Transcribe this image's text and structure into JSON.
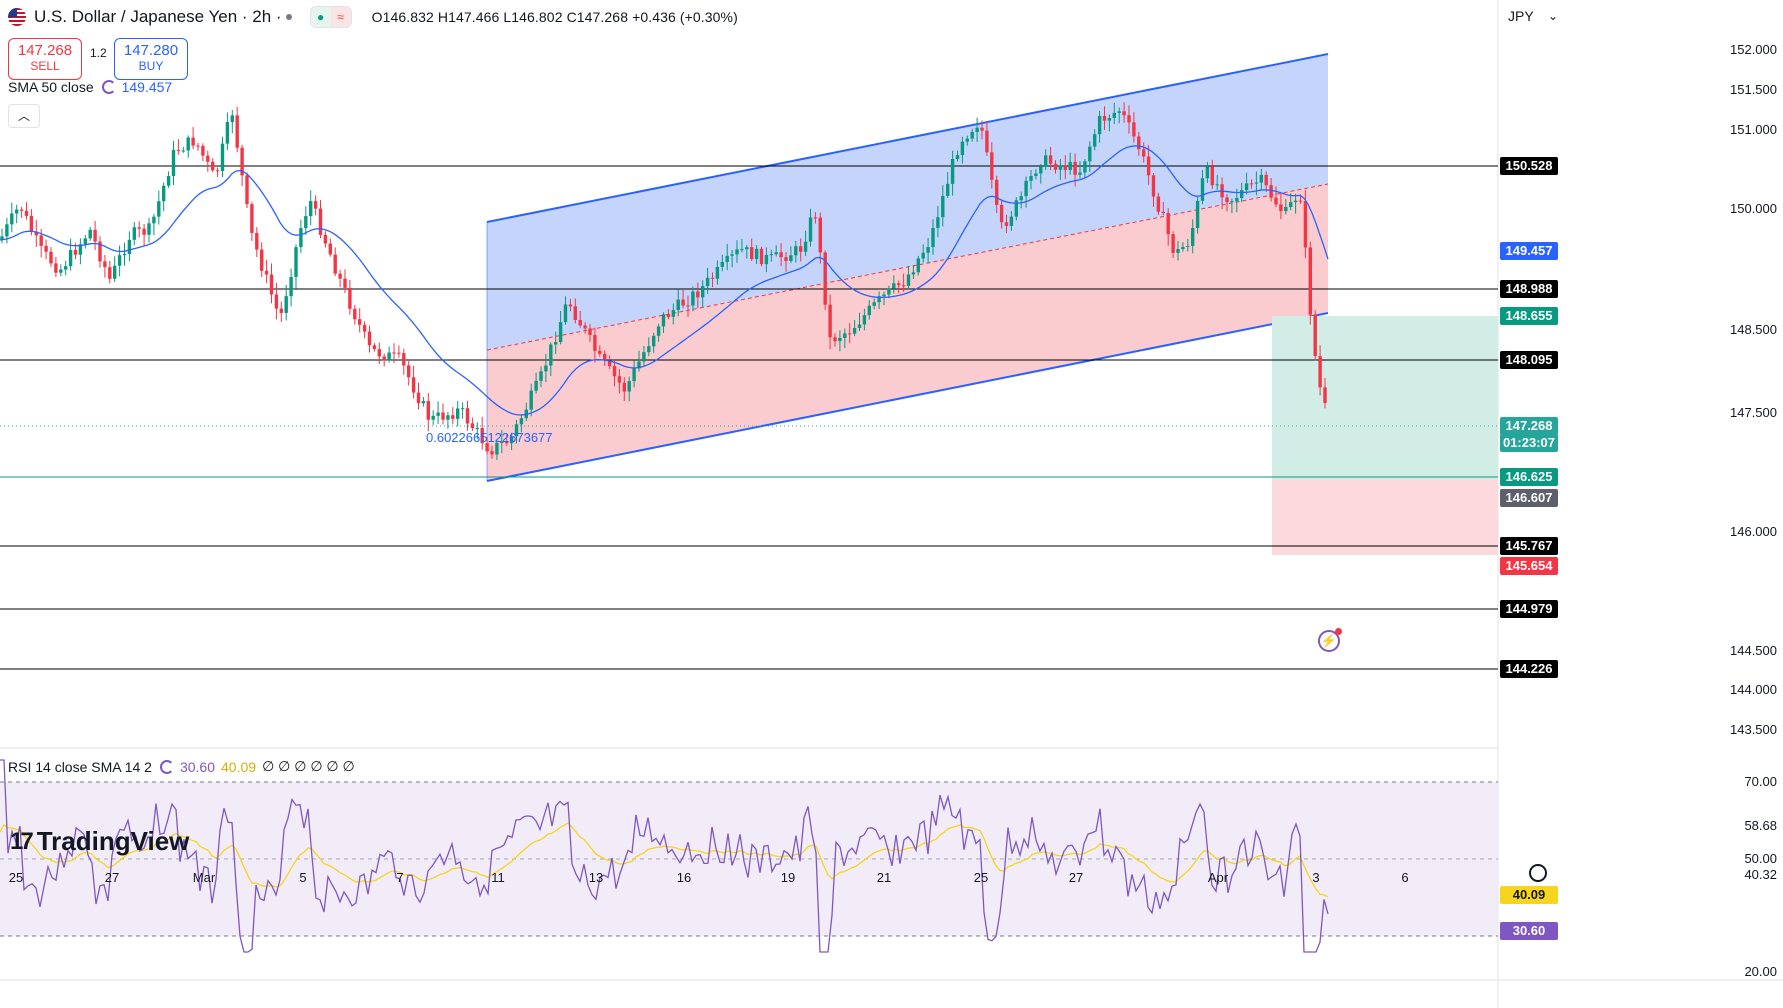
{
  "header": {
    "title": "U.S. Dollar / Japanese Yen · 2h ·",
    "ohlc": "O146.832 H147.466 L146.802 C147.268 +0.436 (+0.30%)"
  },
  "trade": {
    "sell_price": "147.268",
    "sell_label": "SELL",
    "spread": "1.2",
    "buy_price": "147.280",
    "buy_label": "BUY"
  },
  "indicators": {
    "sma_label": "SMA 50 close",
    "sma_value": "149.457",
    "rsi_label": "RSI 14 close SMA 14 2",
    "rsi_value": "30.60",
    "rsi_sma_value": "40.09",
    "rsi_extra": "∅ ∅ ∅ ∅ ∅ ∅"
  },
  "currency": "JPY",
  "channel_label": "0.6022665122673677",
  "brand": "TradingView",
  "price_axis": [
    "152.000",
    "151.500",
    "151.000",
    "150.000",
    "148.500",
    "147.500",
    "146.000",
    "144.500",
    "144.000",
    "143.500"
  ],
  "price_tags": [
    {
      "text": "150.528",
      "bg": "#000000"
    },
    {
      "text": "149.457",
      "bg": "#2962ff"
    },
    {
      "text": "148.988",
      "bg": "#000000"
    },
    {
      "text": "148.655",
      "bg": "#089981"
    },
    {
      "text": "148.095",
      "bg": "#000000"
    },
    {
      "text": "147.268",
      "bg": "#26a69a"
    },
    {
      "text": "01:23:07",
      "bg": "#26a69a"
    },
    {
      "text": "146.625",
      "bg": "#089981"
    },
    {
      "text": "146.607",
      "bg": "#5d606b"
    },
    {
      "text": "145.767",
      "bg": "#000000"
    },
    {
      "text": "145.654",
      "bg": "#f23645"
    },
    {
      "text": "144.979",
      "bg": "#000000"
    },
    {
      "text": "144.226",
      "bg": "#000000"
    }
  ],
  "rsi_axis": [
    "70.00",
    "58.68",
    "50.00",
    "40.32",
    "20.00"
  ],
  "rsi_tags": [
    {
      "text": "40.09",
      "bg": "#f7d51e",
      "fg": "#131722"
    },
    {
      "text": "30.60",
      "bg": "#7e57c2",
      "fg": "#ffffff"
    }
  ],
  "time_axis": [
    "25",
    "27",
    "Mar",
    "5",
    "7",
    "11",
    "13",
    "16",
    "19",
    "21",
    "25",
    "27",
    "Apr",
    "3",
    "6"
  ],
  "colors": {
    "up": "#089981",
    "down": "#f23645",
    "channel_upper_fill": "#bfcffb",
    "channel_lower_fill": "#f9c5ca",
    "sma": "#2962ff",
    "rsi": "#7e57c2",
    "rsi_sma": "#f7d51e"
  }
}
